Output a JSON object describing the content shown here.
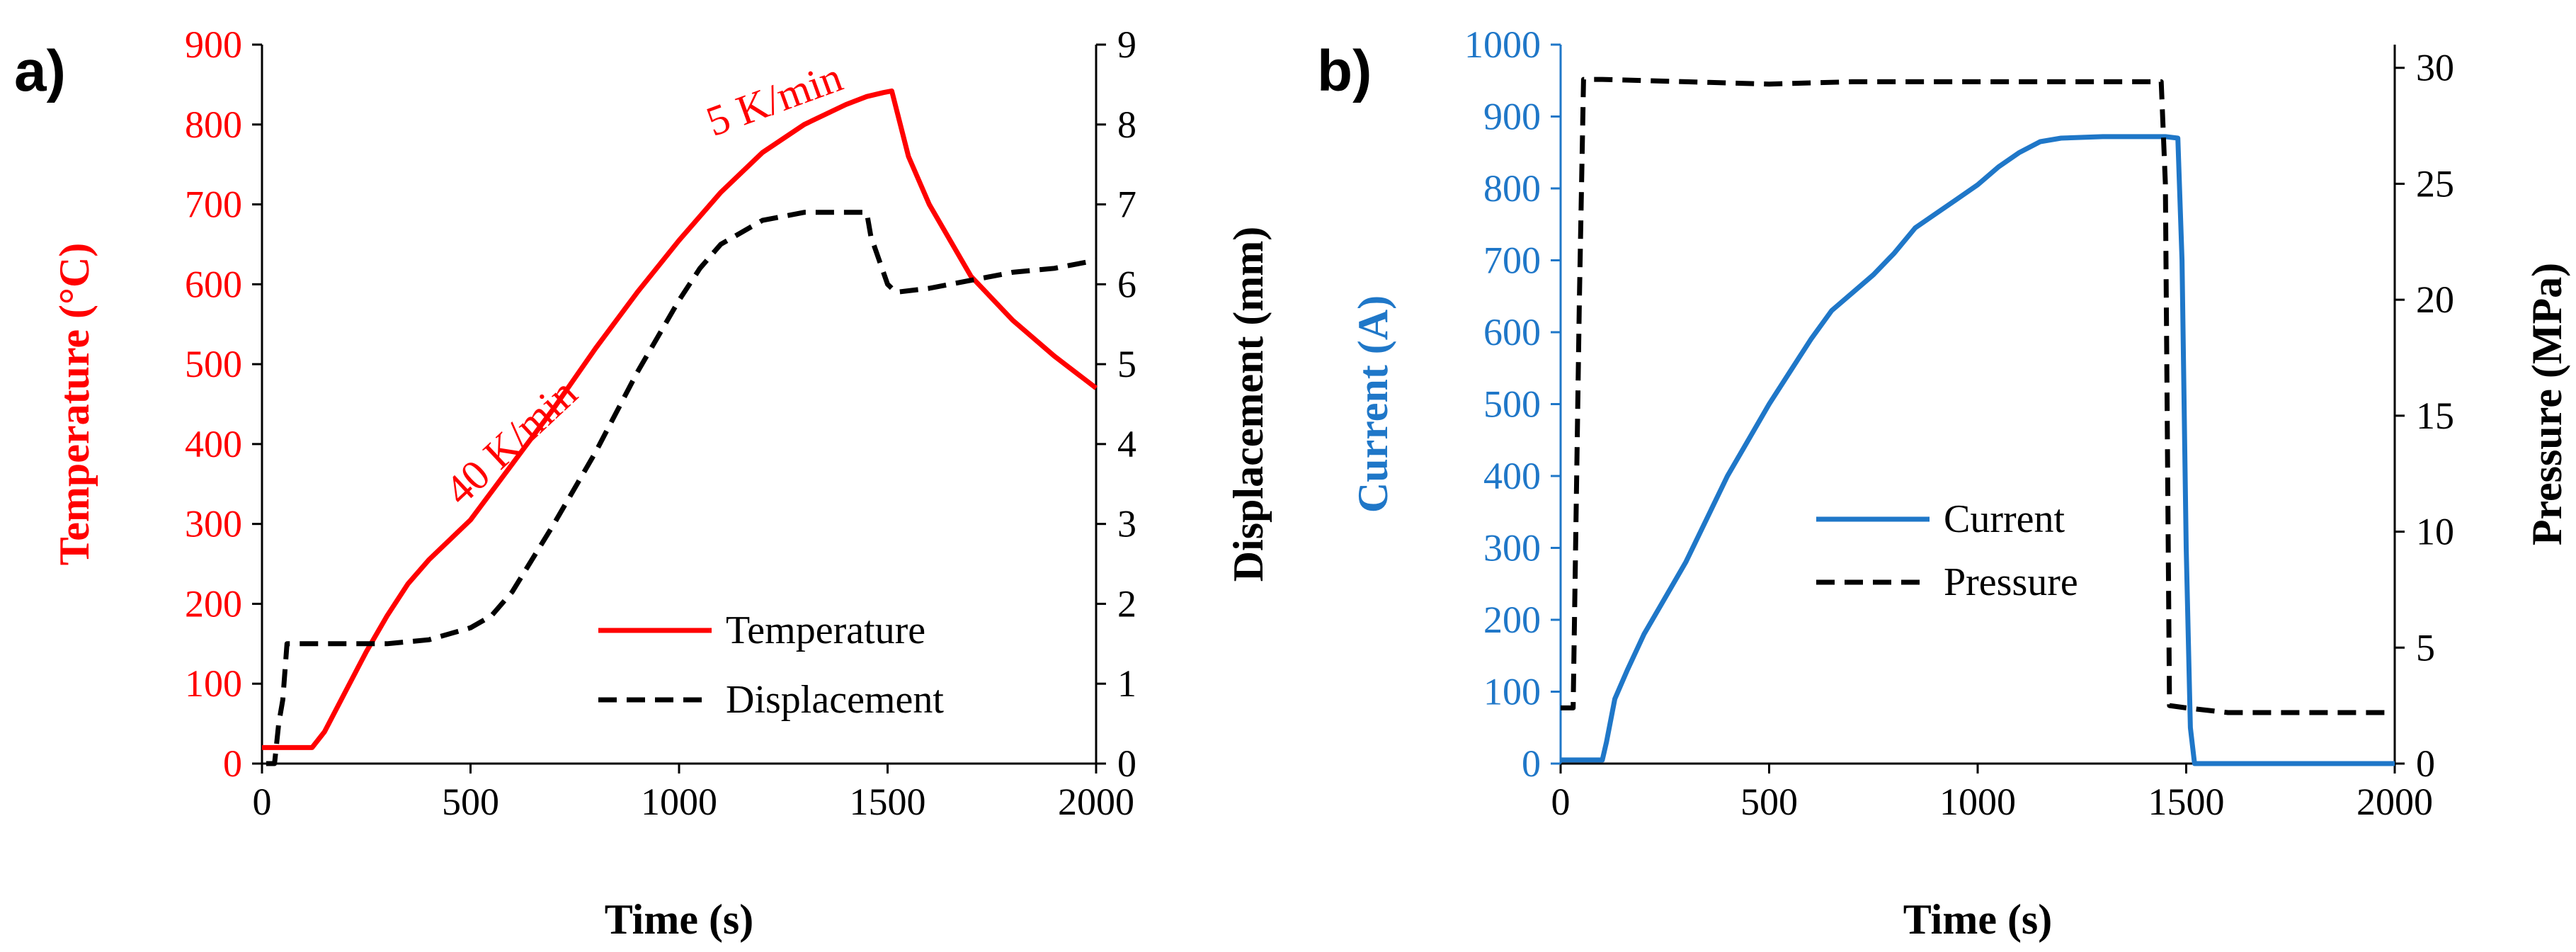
{
  "panels": [
    {
      "label": "a)"
    },
    {
      "label": "b)"
    }
  ],
  "colors": {
    "red": "#ff0000",
    "blue": "#1f77c8",
    "black": "#000000"
  },
  "chart_data": [
    {
      "type": "line",
      "panel": "a)",
      "xlabel": "Time (s)",
      "ylabel_left": "Temperature (°C)",
      "ylabel_right": "Displacement (mm)",
      "xlim": [
        0,
        2000
      ],
      "ylim_left": [
        0,
        900
      ],
      "ylim_right": [
        0,
        9
      ],
      "x_ticks": [
        "0",
        "500",
        "1000",
        "1500",
        "2000"
      ],
      "y_left_ticks": [
        "0",
        "100",
        "200",
        "300",
        "400",
        "500",
        "600",
        "700",
        "800",
        "900"
      ],
      "y_right_ticks": [
        "0",
        "1",
        "2",
        "3",
        "4",
        "5",
        "6",
        "7",
        "8",
        "9"
      ],
      "annotations": [
        "40 K/min",
        "5 K/min"
      ],
      "legend": [
        "Temperature",
        "Displacement"
      ],
      "series": [
        {
          "name": "Temperature",
          "axis": "left",
          "style": "solid",
          "color": "#ff0000",
          "x": [
            0,
            120,
            150,
            200,
            250,
            300,
            350,
            400,
            500,
            600,
            700,
            800,
            900,
            1000,
            1100,
            1200,
            1300,
            1400,
            1450,
            1490,
            1510,
            1550,
            1600,
            1700,
            1800,
            1900,
            2000
          ],
          "y": [
            20,
            20,
            40,
            90,
            140,
            185,
            225,
            255,
            305,
            375,
            445,
            520,
            590,
            655,
            715,
            765,
            800,
            825,
            835,
            840,
            842,
            760,
            700,
            610,
            555,
            510,
            470
          ]
        },
        {
          "name": "Displacement",
          "axis": "right",
          "style": "dashed",
          "color": "#000000",
          "x": [
            10,
            30,
            40,
            50,
            60,
            100,
            200,
            300,
            400,
            500,
            550,
            600,
            700,
            800,
            900,
            1000,
            1050,
            1100,
            1200,
            1300,
            1400,
            1450,
            1460,
            1500,
            1520,
            1600,
            1700,
            1800,
            1900,
            2000
          ],
          "y": [
            0,
            0,
            0.5,
            0.8,
            1.5,
            1.5,
            1.5,
            1.5,
            1.55,
            1.7,
            1.85,
            2.15,
            3.0,
            3.9,
            4.9,
            5.8,
            6.2,
            6.5,
            6.8,
            6.9,
            6.9,
            6.9,
            6.6,
            6.0,
            5.9,
            5.95,
            6.05,
            6.15,
            6.2,
            6.3
          ]
        }
      ]
    },
    {
      "type": "line",
      "panel": "b)",
      "xlabel": "Time (s)",
      "ylabel_left": "Current (A)",
      "ylabel_right": "Pressure (MPa)",
      "xlim": [
        0,
        2000
      ],
      "ylim_left": [
        0,
        1000
      ],
      "ylim_right": [
        0,
        31
      ],
      "x_ticks": [
        "0",
        "500",
        "1000",
        "1500",
        "2000"
      ],
      "y_left_ticks": [
        "0",
        "100",
        "200",
        "300",
        "400",
        "500",
        "600",
        "700",
        "800",
        "900",
        "1000"
      ],
      "y_right_ticks": [
        "0",
        "5",
        "10",
        "15",
        "20",
        "25",
        "30"
      ],
      "y_right_tick_values": [
        0,
        5,
        10,
        15,
        20,
        25,
        30
      ],
      "legend": [
        "Current",
        "Pressure"
      ],
      "series": [
        {
          "name": "Current",
          "axis": "left",
          "style": "solid",
          "color": "#1f77c8",
          "x": [
            0,
            100,
            110,
            130,
            160,
            200,
            250,
            300,
            350,
            400,
            450,
            500,
            550,
            600,
            650,
            700,
            750,
            800,
            850,
            900,
            950,
            1000,
            1050,
            1100,
            1150,
            1200,
            1300,
            1400,
            1450,
            1480,
            1490,
            1500,
            1510,
            1520,
            1600,
            1800,
            2000
          ],
          "y": [
            5,
            5,
            30,
            90,
            130,
            180,
            230,
            280,
            340,
            400,
            450,
            500,
            545,
            590,
            630,
            655,
            680,
            710,
            745,
            765,
            785,
            805,
            830,
            850,
            865,
            870,
            872,
            872,
            872,
            870,
            700,
            300,
            50,
            0,
            0,
            0,
            0
          ]
        },
        {
          "name": "Pressure",
          "axis": "right",
          "style": "dashed",
          "color": "#000000",
          "x": [
            0,
            30,
            45,
            55,
            100,
            300,
            500,
            700,
            900,
            1100,
            1300,
            1440,
            1450,
            1460,
            1500,
            1600,
            1800,
            2000
          ],
          "y": [
            2.4,
            2.4,
            20,
            29.5,
            29.5,
            29.4,
            29.3,
            29.4,
            29.4,
            29.4,
            29.4,
            29.4,
            25,
            2.5,
            2.4,
            2.2,
            2.2,
            2.2
          ]
        }
      ]
    }
  ]
}
